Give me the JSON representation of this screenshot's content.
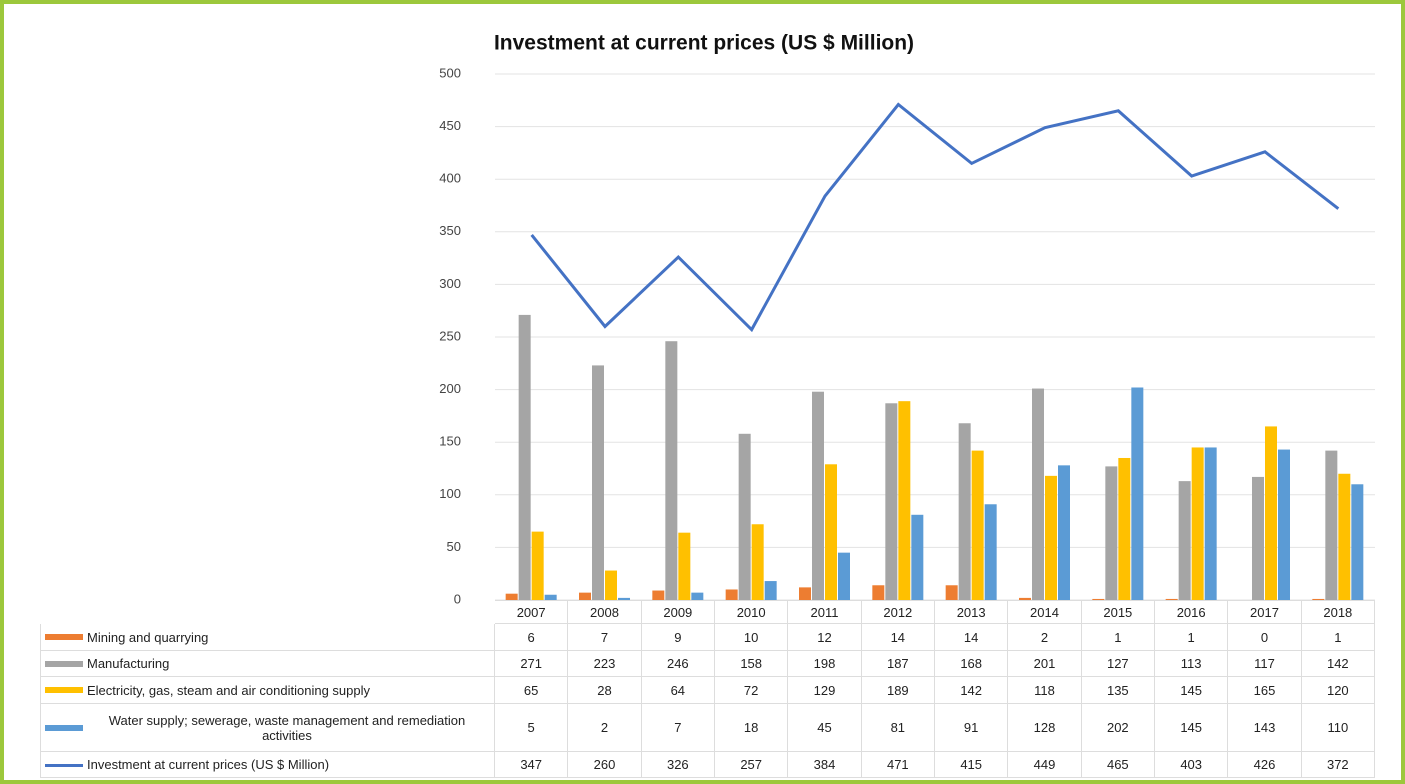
{
  "chart_data": {
    "type": "bar",
    "title": "Investment at current prices (US $ Million)",
    "categories": [
      "2007",
      "2008",
      "2009",
      "2010",
      "2011",
      "2012",
      "2013",
      "2014",
      "2015",
      "2016",
      "2017",
      "2018"
    ],
    "series": [
      {
        "name": "Mining and quarrying",
        "color": "#ed7d31",
        "values": [
          6,
          7,
          9,
          10,
          12,
          14,
          14,
          2,
          1,
          1,
          0,
          1
        ]
      },
      {
        "name": "Manufacturing",
        "color": "#a5a5a5",
        "values": [
          271,
          223,
          246,
          158,
          198,
          187,
          168,
          201,
          127,
          113,
          117,
          142
        ]
      },
      {
        "name": "Electricity, gas, steam and air conditioning supply",
        "color": "#ffc000",
        "values": [
          65,
          28,
          64,
          72,
          129,
          189,
          142,
          118,
          135,
          145,
          165,
          120
        ]
      },
      {
        "name": "Water supply; sewerage, waste management and remediation activities",
        "color": "#5b9bd5",
        "values": [
          5,
          2,
          7,
          18,
          45,
          81,
          91,
          128,
          202,
          145,
          143,
          110
        ]
      },
      {
        "name": "Investment at current prices (US $ Million)",
        "color": "#4472c4",
        "type": "line",
        "values": [
          347,
          260,
          326,
          257,
          384,
          471,
          415,
          449,
          465,
          403,
          426,
          372
        ]
      }
    ],
    "ylim": [
      0,
      500
    ],
    "yticks": [
      0,
      50,
      100,
      150,
      200,
      250,
      300,
      350,
      400,
      450,
      500
    ],
    "grid": true
  }
}
